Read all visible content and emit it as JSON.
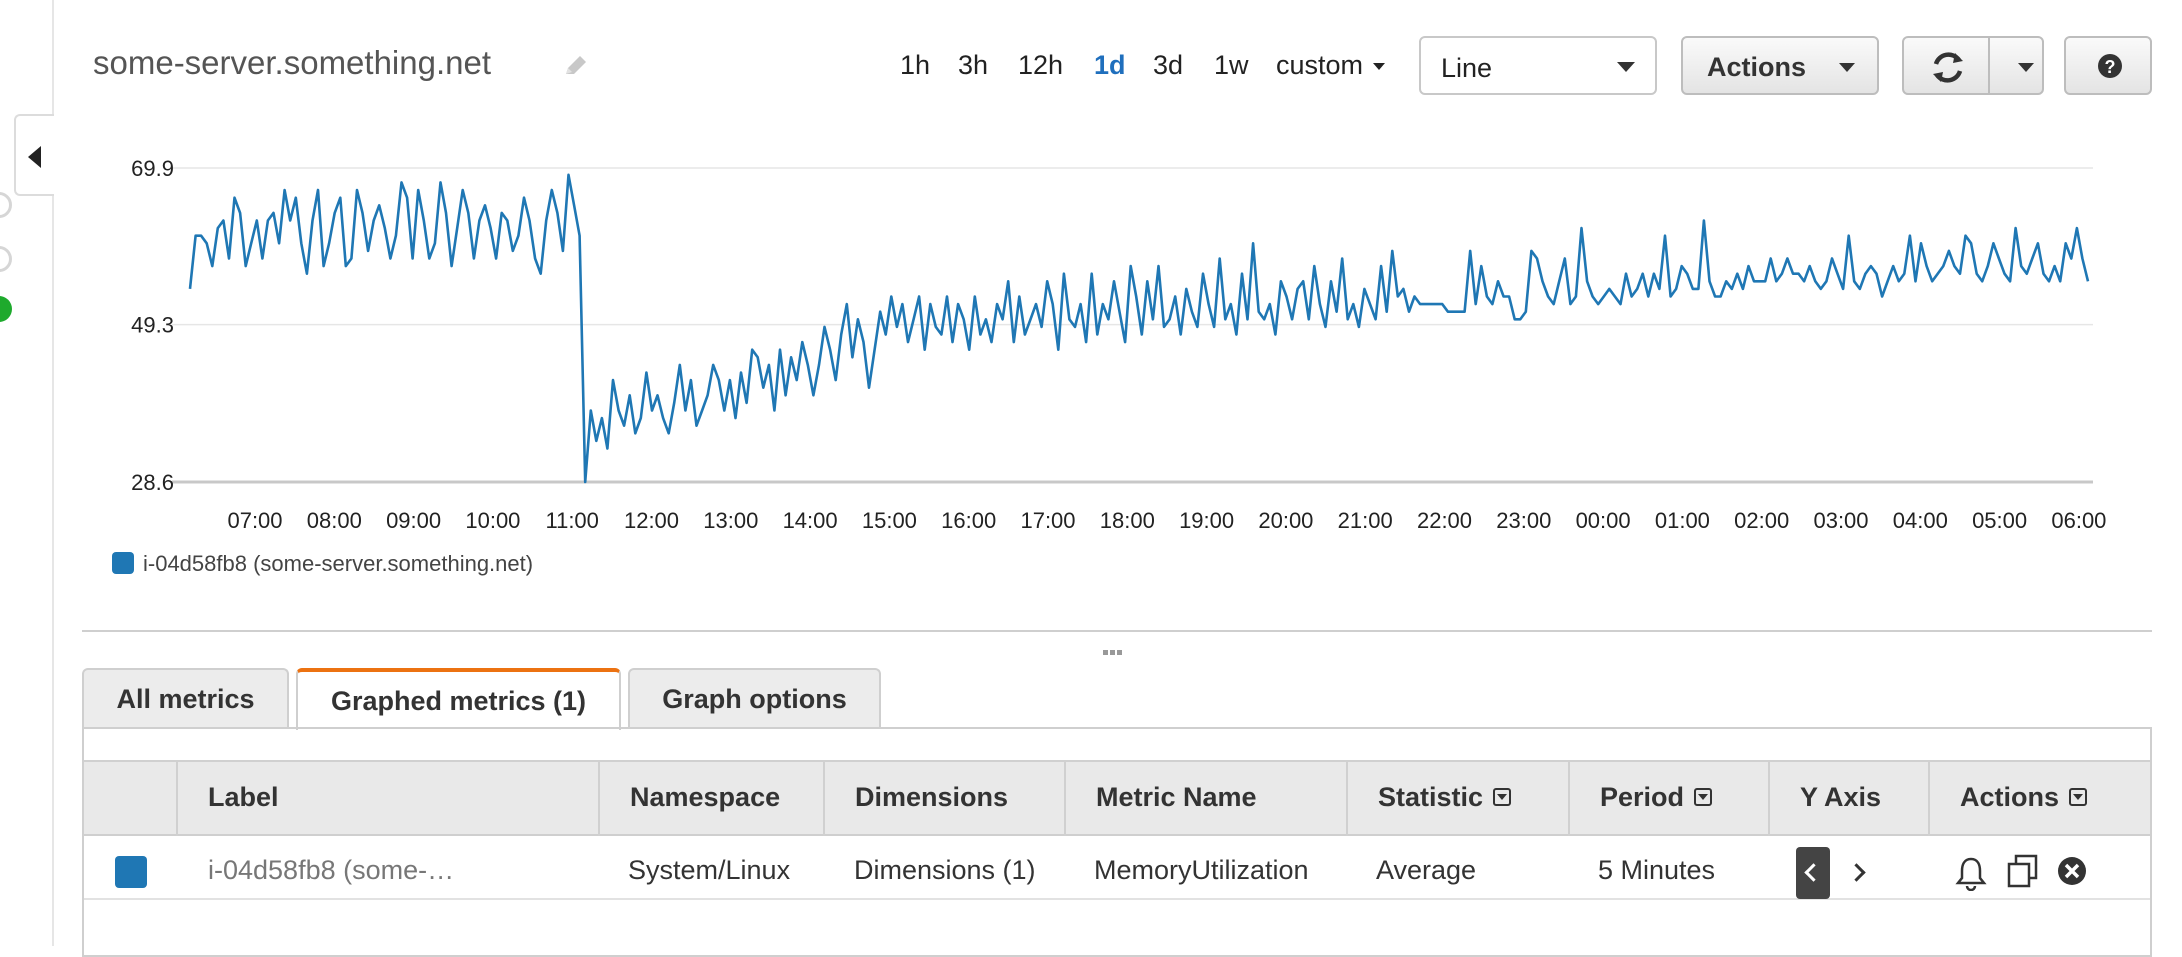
{
  "header": {
    "title": "some-server.something.net",
    "edit_icon": "pencil-icon",
    "time_ranges": [
      "1h",
      "3h",
      "12h",
      "1d",
      "3d",
      "1w"
    ],
    "active_range": "1d",
    "custom_label": "custom",
    "chart_type_value": "Line",
    "actions_label": "Actions",
    "refresh_icon": "refresh-icon",
    "help_icon": "question-icon"
  },
  "colors": {
    "series": "#1f77b4",
    "accent_tab": "#ec7211",
    "active_link": "#1f6fbd"
  },
  "chart_data": {
    "type": "line",
    "yticks": [
      "69.9",
      "49.3",
      "28.6"
    ],
    "ylim": [
      28.6,
      69.9
    ],
    "xticks": [
      "07:00",
      "08:00",
      "09:00",
      "10:00",
      "11:00",
      "12:00",
      "13:00",
      "14:00",
      "15:00",
      "16:00",
      "17:00",
      "18:00",
      "19:00",
      "20:00",
      "21:00",
      "22:00",
      "23:00",
      "00:00",
      "01:00",
      "02:00",
      "03:00",
      "04:00",
      "05:00",
      "06:00"
    ],
    "grid": true,
    "legend_position": "bottom-left",
    "series": [
      {
        "name": "i-04d58fb8 (some-server.something.net)",
        "values": [
          54,
          61,
          61,
          60,
          57,
          62,
          63,
          58,
          66,
          64,
          57,
          60,
          63,
          58,
          63,
          64,
          60,
          67,
          63,
          66,
          60,
          56,
          63,
          67,
          57,
          60,
          64,
          66,
          57,
          58,
          67,
          64,
          59,
          63,
          65,
          62,
          58,
          61,
          68,
          66,
          58,
          67,
          63,
          58,
          60,
          68,
          64,
          57,
          62,
          67,
          64,
          58,
          63,
          65,
          62,
          58,
          64,
          63,
          59,
          61,
          66,
          63,
          58,
          56,
          63,
          67,
          64,
          59,
          69,
          65,
          61,
          28.6,
          38,
          34,
          37,
          33,
          42,
          38,
          36,
          40,
          35,
          37,
          43,
          38,
          40,
          37,
          35,
          39,
          44,
          38,
          42,
          36,
          38,
          40,
          44,
          42,
          38,
          42,
          37,
          43,
          39,
          46,
          45,
          41,
          44,
          38,
          46,
          40,
          45,
          42,
          47,
          44,
          40,
          44,
          49,
          46,
          42,
          48,
          52,
          45,
          50,
          47,
          41,
          46,
          51,
          48,
          53,
          49,
          52,
          47,
          50,
          53,
          46,
          52,
          49,
          48,
          53,
          47,
          52,
          50,
          46,
          53,
          48,
          50,
          47,
          52,
          50,
          55,
          47,
          53,
          48,
          50,
          52,
          49,
          55,
          52,
          46,
          56,
          50,
          49,
          52,
          47,
          56,
          48,
          52,
          50,
          55,
          51,
          47,
          57,
          53,
          48,
          55,
          50,
          57,
          49,
          50,
          53,
          48,
          54,
          51,
          49,
          56,
          52,
          49,
          58,
          50,
          52,
          48,
          56,
          50,
          60,
          51,
          50,
          52,
          48,
          55,
          53,
          50,
          54,
          55,
          50,
          57,
          52,
          49,
          55,
          51,
          58,
          50,
          52,
          49,
          54,
          52,
          50,
          57,
          51,
          59,
          53,
          54,
          51,
          53,
          52,
          52,
          52,
          52,
          52,
          51,
          51,
          51,
          51,
          59,
          52,
          57,
          53,
          52,
          55,
          53,
          53,
          50,
          50,
          51,
          59,
          58,
          55,
          53,
          52,
          55,
          58,
          52,
          53,
          62,
          55,
          53,
          52,
          53,
          54,
          53,
          52,
          56,
          53,
          54,
          56,
          53,
          56,
          54,
          61,
          53,
          54,
          57,
          56,
          54,
          54,
          63,
          55,
          53,
          53,
          55,
          54,
          56,
          54,
          57,
          55,
          55,
          55,
          58,
          55,
          56,
          58,
          56,
          56,
          55,
          57,
          55,
          54,
          55,
          58,
          56,
          54,
          61,
          55,
          54,
          56,
          57,
          56,
          53,
          55,
          57,
          55,
          56,
          61,
          55,
          60,
          57,
          55,
          56,
          57,
          59,
          57,
          56,
          61,
          60,
          56,
          55,
          57,
          60,
          58,
          56,
          55,
          62,
          57,
          56,
          58,
          60,
          56,
          55,
          57,
          55,
          60,
          58,
          62,
          58,
          55
        ]
      }
    ]
  },
  "table": {
    "headers": [
      "Label",
      "Namespace",
      "Dimensions",
      "Metric Name",
      "Statistic",
      "Period",
      "Y Axis",
      "Actions"
    ],
    "row": {
      "label": "i-04d58fb8 (some-…",
      "namespace": "System/Linux",
      "dimensions": "Dimensions (1)",
      "metric_name": "MemoryUtilization",
      "statistic": "Average",
      "period": "5 Minutes"
    },
    "action_icons": [
      "bell-icon",
      "duplicate-icon",
      "remove-icon"
    ]
  },
  "tabs": [
    {
      "label": "All metrics"
    },
    {
      "label": "Graphed metrics (1)"
    },
    {
      "label": "Graph options"
    }
  ]
}
